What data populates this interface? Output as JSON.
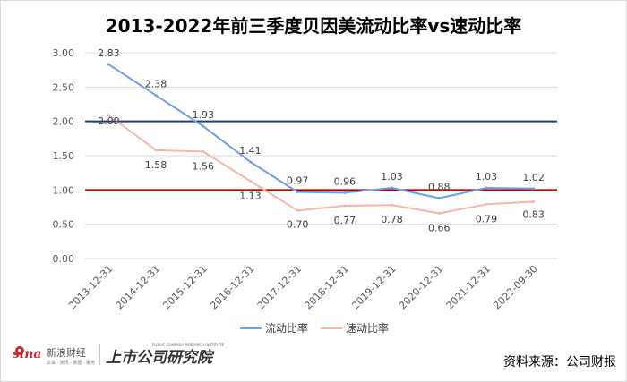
{
  "chart_data": {
    "type": "line",
    "title": "2013-2022年前三季度贝因美流动比率vs速动比率",
    "categories": [
      "2013-12-31",
      "2014-12-31",
      "2015-12-31",
      "2016-12-31",
      "2017-12-31",
      "2018-12-31",
      "2019-12-31",
      "2020-12-31",
      "2021-12-31",
      "2022-09-30"
    ],
    "series": [
      {
        "name": "流动比率",
        "values": [
          2.83,
          2.38,
          1.93,
          1.41,
          0.97,
          0.96,
          1.03,
          0.88,
          1.03,
          1.02
        ],
        "labels": [
          "2.83",
          "2.38",
          "1.93",
          "1.41",
          "0.97",
          "0.96",
          "1.03",
          "0.88",
          "1.03",
          "1.02"
        ],
        "color": "#6d9eeb"
      },
      {
        "name": "速动比率",
        "values": [
          2.09,
          1.58,
          1.56,
          1.13,
          0.7,
          0.77,
          0.78,
          0.66,
          0.79,
          0.83
        ],
        "labels": [
          "2.09",
          "1.58",
          "1.56",
          "1.13",
          "0.70",
          "0.77",
          "0.78",
          "0.66",
          "0.79",
          "0.83"
        ],
        "color": "#f4b6a5"
      }
    ],
    "reference_lines": [
      {
        "value": 2.0,
        "color": "#1f3a8a"
      },
      {
        "value": 1.0,
        "color": "#c00000"
      }
    ],
    "ylim": [
      0,
      3
    ],
    "yticks": [
      "0.00",
      "0.50",
      "1.00",
      "1.50",
      "2.00",
      "2.50",
      "3.00"
    ],
    "grid": true,
    "legend_position": "bottom"
  },
  "footer": {
    "source": "资料来源：公司财报",
    "logo_sina": "sina",
    "logo_sina_cn": "新浪财经",
    "logo_sina_sub": "文章 · 资讯 · 数据 · 服务",
    "logo_institute": "上市公司研究院",
    "logo_institute_en": "PUBLIC COMPANY RESEARCH INSTITUTE"
  }
}
